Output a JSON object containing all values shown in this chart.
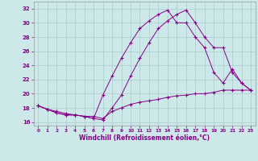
{
  "xlabel": "Windchill (Refroidissement éolien,°C)",
  "background_color": "#cce8e8",
  "grid_color": "#aacccc",
  "line_color": "#880088",
  "xlim": [
    -0.5,
    23.5
  ],
  "ylim": [
    15.5,
    33.0
  ],
  "yticks": [
    16,
    18,
    20,
    22,
    24,
    26,
    28,
    30,
    32
  ],
  "xticks": [
    0,
    1,
    2,
    3,
    4,
    5,
    6,
    7,
    8,
    9,
    10,
    11,
    12,
    13,
    14,
    15,
    16,
    17,
    18,
    19,
    20,
    21,
    22,
    23
  ],
  "line1_x": [
    0,
    1,
    2,
    3,
    4,
    5,
    6,
    7,
    8,
    9,
    10,
    11,
    12,
    13,
    14,
    15,
    16,
    17,
    18,
    19,
    20,
    21,
    22,
    23
  ],
  "line1_y": [
    18.3,
    17.8,
    17.3,
    17.0,
    17.0,
    16.8,
    16.5,
    16.3,
    18.0,
    19.8,
    22.5,
    25.0,
    27.2,
    29.2,
    30.3,
    31.2,
    31.8,
    30.0,
    28.0,
    26.5,
    26.5,
    23.0,
    21.5,
    20.5
  ],
  "line2_x": [
    0,
    1,
    2,
    3,
    4,
    5,
    6,
    7,
    8,
    9,
    10,
    11,
    12,
    13,
    14,
    15,
    16,
    17,
    18,
    19,
    20,
    21,
    22,
    23
  ],
  "line2_y": [
    18.3,
    17.8,
    17.3,
    17.0,
    17.0,
    16.8,
    16.5,
    19.8,
    22.5,
    25.0,
    27.2,
    29.2,
    30.3,
    31.2,
    31.8,
    30.0,
    30.0,
    28.0,
    26.5,
    23.0,
    21.5,
    23.5,
    21.5,
    20.5
  ],
  "line3_x": [
    0,
    1,
    2,
    3,
    4,
    5,
    6,
    7,
    8,
    9,
    10,
    11,
    12,
    13,
    14,
    15,
    16,
    17,
    18,
    19,
    20,
    21,
    22,
    23
  ],
  "line3_y": [
    18.3,
    17.8,
    17.5,
    17.2,
    17.0,
    16.8,
    16.8,
    16.5,
    17.5,
    18.0,
    18.5,
    18.8,
    19.0,
    19.2,
    19.5,
    19.7,
    19.8,
    20.0,
    20.0,
    20.2,
    20.5,
    20.5,
    20.5,
    20.5
  ]
}
